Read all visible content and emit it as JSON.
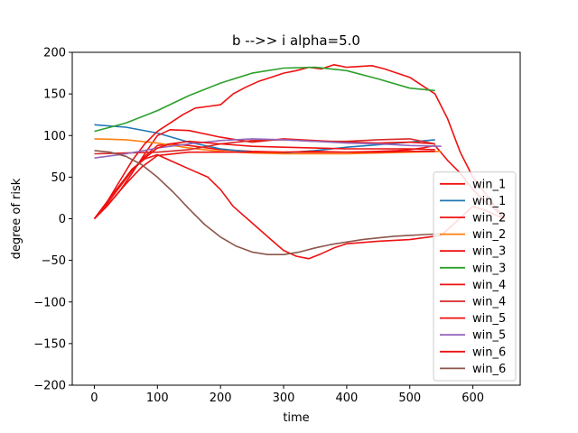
{
  "chart_data": {
    "type": "line",
    "title": "b -->> i  alpha=5.0",
    "xlabel": "time",
    "ylabel": "degree of risk",
    "xlim": [
      -35,
      675
    ],
    "ylim": [
      -200,
      200
    ],
    "xticks": [
      0,
      100,
      200,
      300,
      400,
      500,
      600
    ],
    "yticks": [
      -200,
      -150,
      -100,
      -50,
      0,
      50,
      100,
      150,
      200
    ],
    "grid": false,
    "legend_position": "lower-right",
    "series": [
      {
        "name": "win_1",
        "color": "#ee1111",
        "x": [
          0,
          20,
          40,
          60,
          80,
          100,
          120,
          150,
          180,
          200,
          250,
          300,
          350,
          400,
          450,
          480,
          500,
          520,
          540,
          560,
          580,
          600,
          620,
          640,
          650
        ],
        "y": [
          0,
          18,
          38,
          58,
          75,
          88,
          90,
          88,
          85,
          83,
          81,
          80,
          80,
          80,
          81,
          82,
          83,
          85,
          88,
          70,
          55,
          35,
          20,
          8,
          0
        ]
      },
      {
        "name": "win_1",
        "color": "#1f77b4",
        "x": [
          0,
          50,
          100,
          150,
          200,
          250,
          300,
          350,
          400,
          450,
          500,
          540
        ],
        "y": [
          113,
          110,
          103,
          92,
          84,
          80,
          79,
          82,
          86,
          89,
          92,
          95
        ]
      },
      {
        "name": "win_2",
        "color": "#ee1111",
        "x": [
          0,
          20,
          40,
          60,
          80,
          100,
          120,
          150,
          200,
          250,
          300,
          350,
          400,
          450,
          500,
          540
        ],
        "y": [
          0,
          15,
          33,
          55,
          78,
          100,
          107,
          106,
          98,
          92,
          96,
          94,
          92,
          91,
          92,
          90
        ]
      },
      {
        "name": "win_2",
        "color": "#ff7f0e",
        "x": [
          0,
          50,
          100,
          150,
          200,
          250,
          300,
          350,
          400,
          450,
          500,
          550
        ],
        "y": [
          96,
          95,
          91,
          85,
          81,
          79,
          78,
          78,
          78,
          79,
          80,
          81
        ]
      },
      {
        "name": "win_3",
        "color": "#ee1111",
        "x": [
          0,
          20,
          40,
          60,
          80,
          100,
          120,
          140,
          160,
          180,
          200,
          220,
          240,
          260,
          280,
          300,
          320,
          340,
          360,
          380,
          400,
          420,
          440,
          460,
          480,
          500,
          520,
          540,
          560,
          580,
          600,
          620,
          640,
          650
        ],
        "y": [
          0,
          20,
          45,
          70,
          90,
          105,
          115,
          125,
          133,
          135,
          137,
          150,
          158,
          165,
          170,
          175,
          178,
          182,
          180,
          185,
          182,
          183,
          184,
          180,
          175,
          170,
          160,
          150,
          120,
          80,
          50,
          30,
          10,
          0
        ]
      },
      {
        "name": "win_3",
        "color": "#2ca02c",
        "x": [
          0,
          50,
          100,
          150,
          200,
          250,
          300,
          350,
          400,
          450,
          500,
          540
        ],
        "y": [
          105,
          115,
          130,
          148,
          163,
          175,
          181,
          182,
          178,
          168,
          157,
          154
        ]
      },
      {
        "name": "win_4",
        "color": "#ee1111",
        "x": [
          0,
          25,
          50,
          75,
          100,
          150,
          200,
          250,
          300,
          350,
          400,
          450,
          500,
          540
        ],
        "y": [
          0,
          20,
          42,
          62,
          76,
          80,
          80,
          80,
          80,
          81,
          80,
          80,
          81,
          81
        ]
      },
      {
        "name": "win_4",
        "color": "#d62728",
        "x": [
          0,
          50,
          100,
          150,
          200,
          250,
          300,
          350,
          400,
          450,
          500,
          540
        ],
        "y": [
          78,
          79,
          80,
          83,
          90,
          94,
          95,
          93,
          93,
          95,
          96,
          90
        ]
      },
      {
        "name": "win_5",
        "color": "#ee1111",
        "x": [
          0,
          20,
          40,
          60,
          80,
          100,
          120,
          150,
          180,
          200,
          220,
          250,
          280,
          300,
          320,
          340,
          360,
          380,
          400,
          450,
          500,
          550,
          600,
          620,
          650
        ],
        "y": [
          0,
          20,
          40,
          60,
          72,
          77,
          70,
          60,
          50,
          35,
          15,
          -5,
          -25,
          -38,
          -45,
          -48,
          -42,
          -35,
          -30,
          -27,
          -25,
          -20,
          15,
          10,
          0
        ]
      },
      {
        "name": "win_5",
        "color": "#9467bd",
        "x": [
          0,
          50,
          100,
          150,
          200,
          250,
          300,
          350,
          400,
          450,
          500,
          550
        ],
        "y": [
          73,
          78,
          85,
          90,
          94,
          96,
          95,
          93,
          91,
          90,
          88,
          87
        ]
      },
      {
        "name": "win_6",
        "color": "#ee1111",
        "x": [
          0,
          20,
          40,
          60,
          80,
          100,
          120,
          150,
          200,
          250,
          300,
          350,
          400,
          450,
          500,
          540
        ],
        "y": [
          0,
          20,
          40,
          58,
          73,
          85,
          90,
          93,
          90,
          87,
          86,
          85,
          84,
          84,
          84,
          83
        ]
      },
      {
        "name": "win_6",
        "color": "#8c564b",
        "x": [
          0,
          25,
          50,
          75,
          100,
          125,
          150,
          175,
          200,
          225,
          250,
          275,
          300,
          325,
          350,
          375,
          400,
          425,
          450,
          475,
          500,
          525,
          550
        ],
        "y": [
          82,
          80,
          75,
          65,
          50,
          32,
          12,
          -7,
          -22,
          -33,
          -40,
          -43,
          -43,
          -40,
          -35,
          -31,
          -28,
          -25,
          -23,
          -21,
          -20,
          -19,
          -18
        ]
      }
    ]
  }
}
